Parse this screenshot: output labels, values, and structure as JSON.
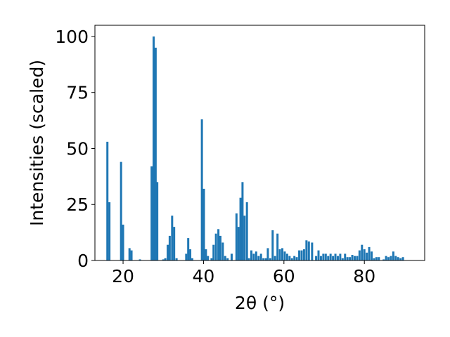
{
  "chart_data": {
    "type": "bar",
    "title": "",
    "xlabel": "2θ (°)",
    "ylabel": "Intensities (scaled)",
    "xlim": [
      13,
      95
    ],
    "ylim": [
      0,
      105
    ],
    "xticks": [
      20,
      40,
      60,
      80
    ],
    "yticks": [
      0,
      25,
      50,
      75,
      100
    ],
    "grid": false,
    "bar_color": "#1f77b4",
    "x": [
      16.1,
      16.6,
      19.5,
      20.0,
      21.6,
      22.1,
      24.2,
      27.1,
      27.6,
      28.1,
      28.5,
      30.0,
      30.5,
      31.1,
      31.6,
      32.2,
      32.7,
      33.3,
      35.7,
      36.2,
      36.7,
      37.2,
      39.6,
      40.1,
      40.6,
      41.1,
      42.0,
      42.5,
      43.1,
      43.7,
      44.2,
      44.8,
      45.4,
      46.0,
      47.0,
      48.2,
      48.7,
      49.2,
      49.7,
      50.2,
      50.8,
      51.3,
      51.9,
      52.5,
      53.1,
      53.7,
      54.3,
      54.9,
      55.5,
      56.0,
      56.6,
      57.2,
      57.8,
      58.4,
      59.0,
      59.6,
      60.2,
      60.8,
      61.4,
      62.0,
      62.6,
      63.2,
      63.8,
      64.4,
      65.0,
      65.6,
      66.2,
      67.0,
      68.0,
      68.6,
      69.2,
      69.8,
      70.4,
      71.0,
      71.6,
      72.2,
      72.8,
      73.4,
      74.0,
      74.6,
      75.2,
      75.8,
      76.4,
      77.0,
      77.6,
      78.2,
      78.8,
      79.4,
      80.0,
      80.6,
      81.2,
      81.8,
      82.4,
      83.0,
      83.6,
      84.8,
      85.4,
      86.0,
      86.6,
      87.2,
      87.8,
      88.4,
      89.0,
      89.6
    ],
    "values": [
      53,
      26,
      44,
      16,
      5.5,
      4.5,
      0.5,
      42,
      100,
      95,
      35,
      0.5,
      1,
      7,
      11,
      20,
      15,
      1,
      3,
      10,
      5,
      1,
      63,
      32,
      5,
      2,
      1,
      7,
      12,
      14,
      11,
      8,
      2,
      1,
      3,
      21,
      15,
      28,
      35,
      20,
      26,
      1,
      4.5,
      3,
      4,
      2,
      3,
      1,
      1,
      5.5,
      1,
      13.5,
      2,
      12,
      5,
      5.5,
      4,
      3,
      2,
      1,
      2,
      1.5,
      4.5,
      4.5,
      5,
      9,
      8.5,
      8,
      2,
      4.5,
      2,
      3,
      3,
      2,
      3,
      2,
      3,
      2,
      3,
      1,
      3,
      1.5,
      1.5,
      2.5,
      2,
      2,
      4.5,
      7,
      5,
      3.5,
      6,
      4,
      1,
      1.5,
      1.5,
      0.5,
      2,
      1.5,
      2,
      4,
      2,
      1.5,
      1,
      1.5
    ]
  }
}
